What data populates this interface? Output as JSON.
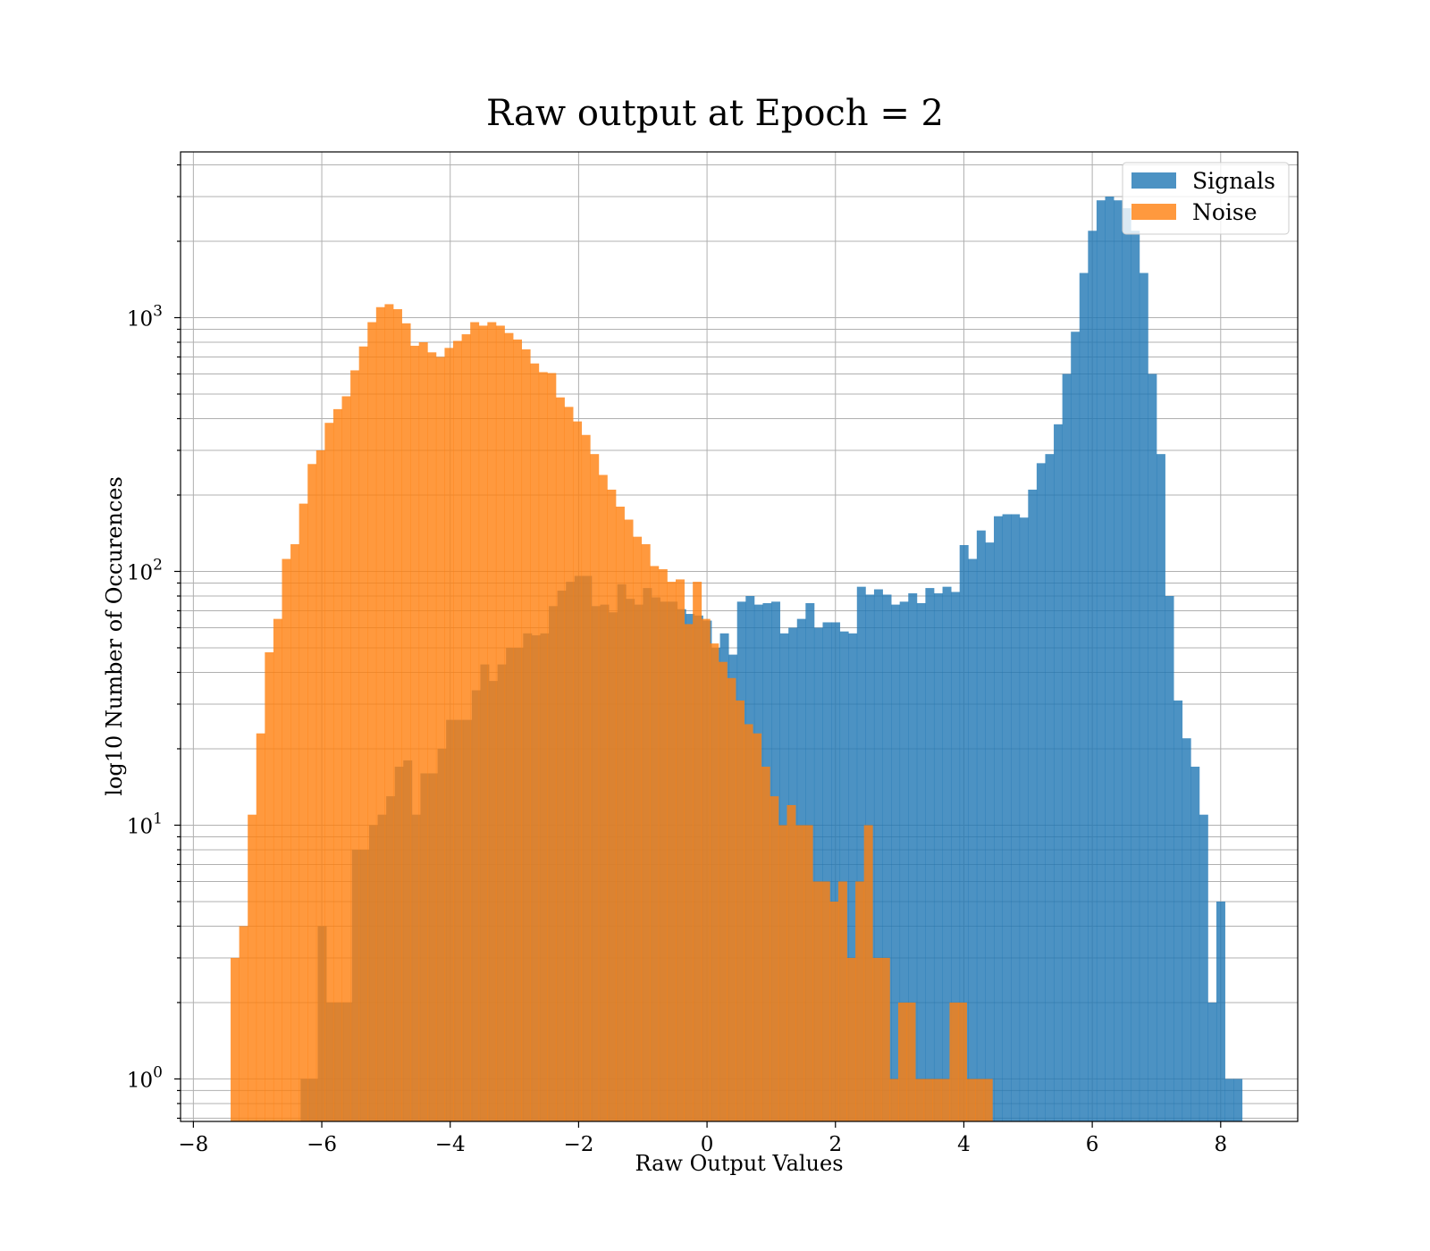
{
  "chart_data": {
    "type": "bar",
    "title": "Raw output at Epoch = 2",
    "xlabel": "Raw Output Values",
    "ylabel": "log10 Number of Occurences",
    "xlim": [
      -8.2,
      9.2
    ],
    "ylim": [
      0.68,
      4500
    ],
    "yscale": "log",
    "grid": true,
    "grid_minor": true,
    "legend": "top-right",
    "x_ticks": [
      -8,
      -6,
      -4,
      -2,
      0,
      2,
      4,
      6,
      8
    ],
    "x_tick_labels": [
      "−8",
      "−6",
      "−4",
      "−2",
      "0",
      "2",
      "4",
      "6",
      "8"
    ],
    "y_ticks": [
      {
        "value": 1,
        "base": "10",
        "exp": "0"
      },
      {
        "value": 10,
        "base": "10",
        "exp": "1"
      },
      {
        "value": 100,
        "base": "10",
        "exp": "2"
      },
      {
        "value": 1000,
        "base": "10",
        "exp": "3"
      }
    ],
    "series": [
      {
        "name": "Signals",
        "color": "#1f77b4",
        "opacity": 0.8,
        "x_start": -6.33,
        "bin_width": 0.1333,
        "values": [
          1,
          1,
          4,
          2,
          2,
          2,
          8,
          8,
          10,
          11,
          13,
          17,
          18,
          11,
          16,
          16,
          20,
          26,
          26,
          26,
          34,
          43,
          37,
          43,
          50,
          50,
          57,
          56,
          57,
          73,
          84,
          91,
          96,
          96,
          73,
          74,
          69,
          89,
          78,
          74,
          86,
          79,
          76,
          76,
          71,
          68,
          67,
          64,
          50,
          57,
          47,
          76,
          80,
          74,
          75,
          76,
          57,
          60,
          65,
          75,
          60,
          63,
          63,
          58,
          57,
          87,
          81,
          85,
          81,
          74,
          76,
          82,
          75,
          86,
          82,
          87,
          83,
          127,
          112,
          145,
          130,
          165,
          168,
          168,
          163,
          210,
          267,
          290,
          380,
          600,
          880,
          1500,
          2200,
          2900,
          3000,
          2900,
          2700,
          2200,
          1500,
          600,
          290,
          80,
          31,
          22,
          17,
          11,
          2,
          5,
          1,
          1
        ]
      },
      {
        "name": "Noise",
        "color": "#ff7f0e",
        "opacity": 0.8,
        "x_start": -7.42,
        "bin_width": 0.1333,
        "values": [
          3,
          4,
          11,
          23,
          48,
          65,
          112,
          128,
          185,
          265,
          300,
          385,
          436,
          490,
          620,
          770,
          960,
          1100,
          1130,
          1080,
          950,
          775,
          800,
          730,
          700,
          760,
          810,
          860,
          960,
          930,
          960,
          930,
          870,
          820,
          750,
          660,
          610,
          605,
          485,
          445,
          390,
          345,
          290,
          240,
          210,
          180,
          160,
          137,
          128,
          105,
          102,
          91,
          93,
          62,
          91,
          65,
          52,
          44,
          38,
          31,
          25,
          23,
          17,
          13,
          10,
          12,
          10,
          10,
          6,
          6,
          5,
          6,
          3,
          6,
          10,
          3,
          3,
          1,
          2,
          2,
          1,
          1,
          1,
          1,
          2,
          2,
          1,
          1,
          1
        ]
      }
    ]
  }
}
